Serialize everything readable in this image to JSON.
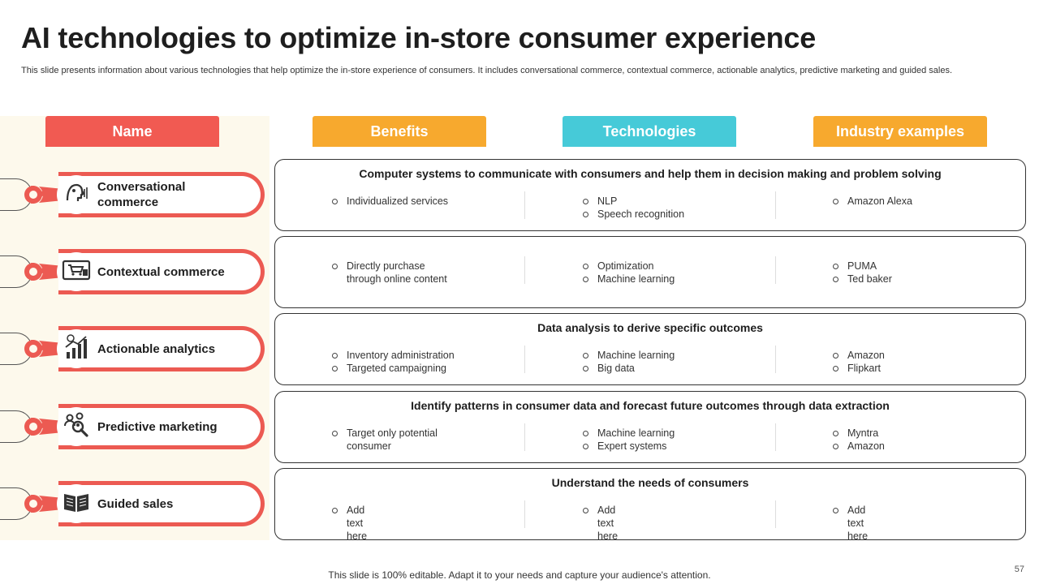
{
  "slide": {
    "title": "AI technologies to optimize in-store consumer experience",
    "subtitle": "This slide presents information about various technologies that help optimize the in-store experience of consumers. It includes conversational commerce, contextual commerce, actionable analytics, predictive marketing and guided sales.",
    "footer": "This slide is 100% editable. Adapt it to your needs and capture your audience's attention.",
    "page_number": "57"
  },
  "headers": {
    "name": "Name",
    "benefits": "Benefits",
    "technologies": "Technologies",
    "industry": "Industry examples"
  },
  "colors": {
    "name_header": "#f15a52",
    "benefits_header": "#f7a92e",
    "technologies_header": "#46cad8",
    "industry_header": "#f7a92e",
    "pill_border": "#ec5a52",
    "side_background": "#fdf9ec"
  },
  "rows": [
    {
      "name": "Conversational commerce",
      "icon": "voice-assistant-icon",
      "heading": "Computer systems to communicate with consumers and help them in decision making and problem solving",
      "benefits": [
        "Individualized  services"
      ],
      "technologies": [
        "NLP",
        "Speech recognition"
      ],
      "industry": [
        "Amazon Alexa"
      ]
    },
    {
      "name": "Contextual commerce",
      "icon": "online-shopping-icon",
      "heading": "",
      "benefits": [
        "Directly purchase through online content"
      ],
      "technologies": [
        "Optimization",
        "Machine learning"
      ],
      "industry": [
        "PUMA",
        "Ted baker"
      ]
    },
    {
      "name": "Actionable analytics",
      "icon": "analytics-chart-icon",
      "heading": "Data analysis  to derive specific outcomes",
      "benefits": [
        "Inventory  administration",
        "Targeted  campaigning"
      ],
      "technologies": [
        "Machine learning",
        "Big data"
      ],
      "industry": [
        "Amazon",
        "Flipkart"
      ]
    },
    {
      "name": "Predictive marketing",
      "icon": "audience-search-icon",
      "heading": "Identify patterns in consumer data and forecast future outcomes through data extraction",
      "benefits": [
        "Target  only potential consumer"
      ],
      "technologies": [
        "Machine learning",
        "Expert systems"
      ],
      "industry": [
        "Myntra",
        "Amazon"
      ]
    },
    {
      "name": "Guided sales",
      "icon": "open-book-icon",
      "heading": "Understand the needs of consumers",
      "benefits": [
        "Add text here"
      ],
      "technologies": [
        "Add text here"
      ],
      "industry": [
        "Add text here"
      ]
    }
  ]
}
